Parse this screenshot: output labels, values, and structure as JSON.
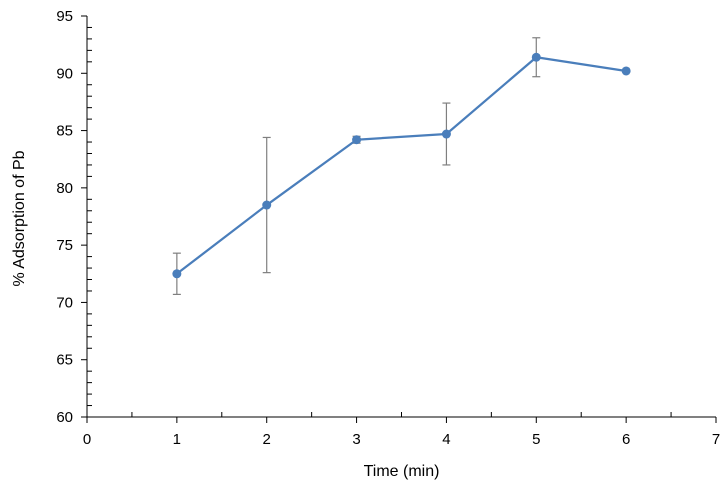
{
  "chart_data": {
    "type": "line",
    "title": "",
    "xlabel": "Time (min)",
    "ylabel": "% Adsorption of  Pb",
    "xlim": [
      0,
      7
    ],
    "ylim": [
      60,
      95
    ],
    "x_ticks": [
      0,
      1,
      2,
      3,
      4,
      5,
      6,
      7
    ],
    "y_ticks": [
      60,
      65,
      70,
      75,
      80,
      85,
      90,
      95
    ],
    "x_tick_labels": [
      "0",
      "1",
      "2",
      "3",
      "4",
      "5",
      "6",
      "7"
    ],
    "y_tick_labels": [
      "60",
      "65",
      "70",
      "75",
      "80",
      "85",
      "90",
      "95"
    ],
    "grid": false,
    "legend": "none",
    "series": [
      {
        "name": "Pb adsorption",
        "color": "#4a7ebb",
        "x": [
          1,
          2,
          3,
          4,
          5,
          6
        ],
        "y": [
          72.5,
          78.5,
          84.2,
          84.7,
          91.4,
          90.2
        ],
        "error": [
          1.8,
          5.9,
          0.3,
          2.7,
          1.7,
          0
        ]
      }
    ]
  }
}
